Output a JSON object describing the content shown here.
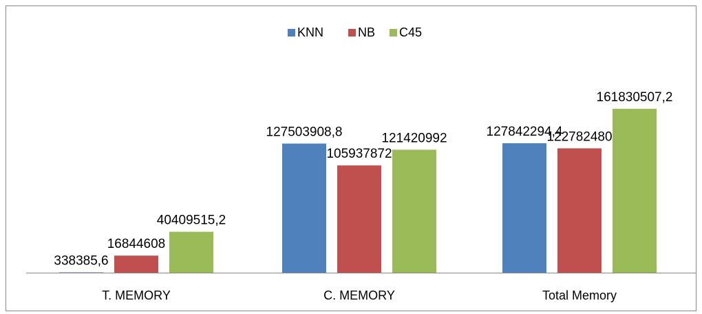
{
  "chart_data": {
    "type": "bar",
    "categories": [
      "T. MEMORY",
      "C. MEMORY",
      "Total Memory"
    ],
    "series": [
      {
        "name": "KNN",
        "color": "#4f81bd",
        "values": [
          338385.6,
          127503908.8,
          127842294.4
        ],
        "value_labels": [
          "338385,6",
          "127503908,8",
          "127842294,4"
        ]
      },
      {
        "name": "NB",
        "color": "#c0504d",
        "values": [
          16844608,
          105937872,
          122782480
        ]
      },
      {
        "name": "C45",
        "color": "#9bbb59",
        "values": [
          40409515.2,
          121420992,
          161830507.2
        ],
        "value_labels": [
          "40409515,2",
          "121420992",
          "161830507,2"
        ]
      }
    ]
  }
}
